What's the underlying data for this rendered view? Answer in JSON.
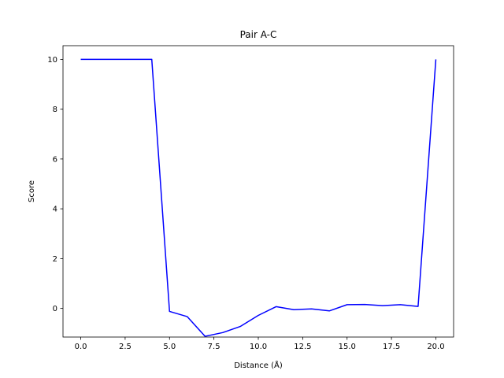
{
  "chart_data": {
    "type": "line",
    "title": "Pair A-C",
    "xlabel": "Distance (Å)",
    "ylabel": "Score",
    "xlim": [
      -1.0,
      21.0
    ],
    "ylim": [
      -1.15,
      10.55
    ],
    "xticks": [
      0.0,
      2.5,
      5.0,
      7.5,
      10.0,
      12.5,
      15.0,
      17.5,
      20.0
    ],
    "xtick_labels": [
      "0.0",
      "2.5",
      "5.0",
      "7.5",
      "10.0",
      "12.5",
      "15.0",
      "17.5",
      "20.0"
    ],
    "yticks": [
      0,
      2,
      4,
      6,
      8,
      10
    ],
    "ytick_labels": [
      "0",
      "2",
      "4",
      "6",
      "8",
      "10"
    ],
    "grid": false,
    "series": [
      {
        "color": "#0000ff",
        "x": [
          0,
          1,
          2,
          3,
          4,
          5,
          6,
          7,
          8,
          9,
          10,
          11,
          12,
          13,
          14,
          15,
          16,
          17,
          18,
          19,
          20
        ],
        "y": [
          10,
          10,
          10,
          10,
          10,
          -0.12,
          -0.33,
          -1.12,
          -0.97,
          -0.72,
          -0.28,
          0.07,
          -0.05,
          -0.02,
          -0.1,
          0.15,
          0.16,
          0.11,
          0.15,
          0.08,
          10
        ]
      }
    ]
  }
}
